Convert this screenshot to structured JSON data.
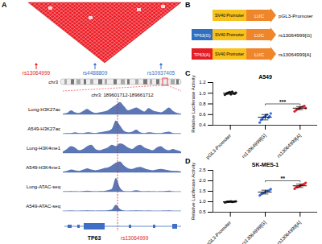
{
  "panels": {
    "A": {
      "label": "A",
      "snps": [
        {
          "name": "rs13064999",
          "color": "#e31e24"
        },
        {
          "name": "rs4488809",
          "color": "#3a6fc4"
        },
        {
          "name": "rs10937405",
          "color": "#3a6fc4"
        }
      ],
      "chromosome": "chr3",
      "region": "chr3: 189601712-189661712",
      "track_color": "#3f5fa8",
      "tracks": [
        {
          "name": "Lung-H3K27ac",
          "signal": [
            0.05,
            0.1,
            0.3,
            0.15,
            0.1,
            0.25,
            0.4,
            0.2,
            0.1,
            0.15,
            0.2,
            0.3,
            0.5,
            0.7,
            0.9,
            0.6,
            0.3,
            0.4,
            0.5,
            0.35,
            0.2,
            0.45,
            0.3,
            0.2,
            0.15,
            0.3,
            0.5,
            0.25,
            0.1,
            0.05
          ]
        },
        {
          "name": "A549-H3K27ac",
          "signal": [
            0.02,
            0.05,
            0.05,
            0.1,
            0.05,
            0.05,
            0.1,
            0.08,
            0.05,
            0.1,
            0.15,
            0.2,
            0.35,
            0.95,
            0.6,
            0.2,
            0.1,
            0.15,
            0.3,
            0.1,
            0.05,
            0.1,
            0.08,
            0.05,
            0.05,
            0.1,
            0.15,
            0.05,
            0.03,
            0.02
          ]
        },
        {
          "name": "Lung-H3K4me1",
          "signal": [
            0.1,
            0.3,
            0.5,
            0.4,
            0.2,
            0.3,
            0.5,
            0.6,
            0.3,
            0.2,
            0.3,
            0.4,
            0.6,
            0.5,
            0.7,
            0.6,
            0.4,
            0.3,
            0.5,
            0.6,
            0.4,
            0.3,
            0.2,
            0.4,
            0.5,
            0.3,
            0.2,
            0.3,
            0.2,
            0.1
          ]
        },
        {
          "name": "A549-H3K4me1",
          "signal": [
            0.05,
            0.1,
            0.2,
            0.15,
            0.1,
            0.2,
            0.3,
            0.2,
            0.15,
            0.2,
            0.3,
            0.35,
            0.5,
            0.7,
            0.8,
            0.5,
            0.3,
            0.25,
            0.35,
            0.4,
            0.3,
            0.2,
            0.15,
            0.2,
            0.25,
            0.2,
            0.15,
            0.1,
            0.1,
            0.05
          ]
        },
        {
          "name": "Lung-ATAC-seq",
          "signal": [
            0.02,
            0.03,
            0.05,
            0.03,
            0.02,
            0.05,
            0.08,
            0.05,
            0.03,
            0.05,
            0.05,
            0.1,
            0.2,
            1.0,
            0.3,
            0.05,
            0.03,
            0.05,
            0.1,
            0.05,
            0.03,
            0.05,
            0.03,
            0.02,
            0.03,
            0.05,
            0.08,
            0.03,
            0.02,
            0.02
          ]
        },
        {
          "name": "A549-ATAC-seq",
          "signal": [
            0.02,
            0.02,
            0.03,
            0.02,
            0.02,
            0.03,
            0.05,
            0.03,
            0.02,
            0.03,
            0.03,
            0.05,
            0.1,
            0.45,
            0.15,
            0.03,
            0.02,
            0.03,
            0.05,
            0.03,
            0.02,
            0.03,
            0.02,
            0.02,
            0.02,
            0.03,
            0.05,
            0.02,
            0.02,
            0.02
          ]
        }
      ],
      "gene": "TP63",
      "snp_label": "rs13064999"
    },
    "B": {
      "label": "B",
      "promoter": "SV40 Promoter",
      "reporter": "LUC",
      "constructs": [
        {
          "name": "pGL3-Promoter"
        },
        {
          "insert": "TP63(G)",
          "color": "#2f6fbf",
          "name": "rs13064999[G]"
        },
        {
          "insert": "TP63(A)",
          "color": "#e31e24",
          "name": "rs13064999[A]"
        }
      ]
    }
  },
  "chart_data": [
    {
      "label": "C",
      "type": "scatter",
      "title": "A549",
      "ylabel": "Relative Luciferase Activity",
      "categories": [
        "pGL3-Promoter",
        "rs13064999[G]",
        "rs13064999[A]"
      ],
      "colors": [
        "#222222",
        "#3b6fd6",
        "#e8262a"
      ],
      "values": [
        [
          0.97,
          0.99,
          1.0,
          1.01,
          1.02,
          0.98,
          1.03,
          1.0,
          0.99,
          1.01
        ],
        [
          0.45,
          0.5,
          0.52,
          0.55,
          0.56,
          0.58,
          0.6,
          0.54,
          0.57,
          0.62
        ],
        [
          0.66,
          0.68,
          0.7,
          0.71,
          0.72,
          0.73,
          0.74,
          0.75,
          0.76,
          0.72
        ]
      ],
      "means": [
        1.0,
        0.55,
        0.72
      ],
      "errors": [
        0.02,
        0.05,
        0.03
      ],
      "ylim": [
        0.4,
        1.2
      ],
      "yticks": [
        0.4,
        0.6,
        0.8,
        {
          "value": 1,
          "label": "1.0"
        },
        1.2
      ],
      "annotations": [
        {
          "text": "***",
          "between": [
            "rs13064999[G]",
            "rs13064999[A]"
          ]
        }
      ]
    },
    {
      "label": "D",
      "type": "scatter",
      "title": "SK-MES-1",
      "ylabel": "Relative Luciferase Activity",
      "categories": [
        "pGL3-Promoter",
        "rs13064999[G]",
        "rs13064999[A]"
      ],
      "colors": [
        "#222222",
        "#3b6fd6",
        "#e8262a"
      ],
      "values": [
        [
          0.97,
          0.98,
          1.0,
          1.0,
          1.01,
          1.02,
          0.99,
          1.0,
          1.01,
          1.02
        ],
        [
          1.3,
          1.35,
          1.4,
          1.42,
          1.45,
          1.48,
          1.5,
          1.52,
          1.55,
          1.6
        ],
        [
          1.62,
          1.68,
          1.7,
          1.72,
          1.75,
          1.78,
          1.8,
          1.82,
          1.85,
          1.9
        ]
      ],
      "means": [
        1.0,
        1.46,
        1.76
      ],
      "errors": [
        0.02,
        0.09,
        0.08
      ],
      "ylim": [
        0.5,
        2.5
      ],
      "yticks": [
        0.5,
        {
          "value": 1,
          "label": "1.0"
        },
        1.5,
        {
          "value": 2,
          "label": "2.0"
        },
        2.5
      ],
      "annotations": [
        {
          "text": "**",
          "between": [
            "rs13064999[G]",
            "rs13064999[A]"
          ]
        }
      ]
    }
  ]
}
